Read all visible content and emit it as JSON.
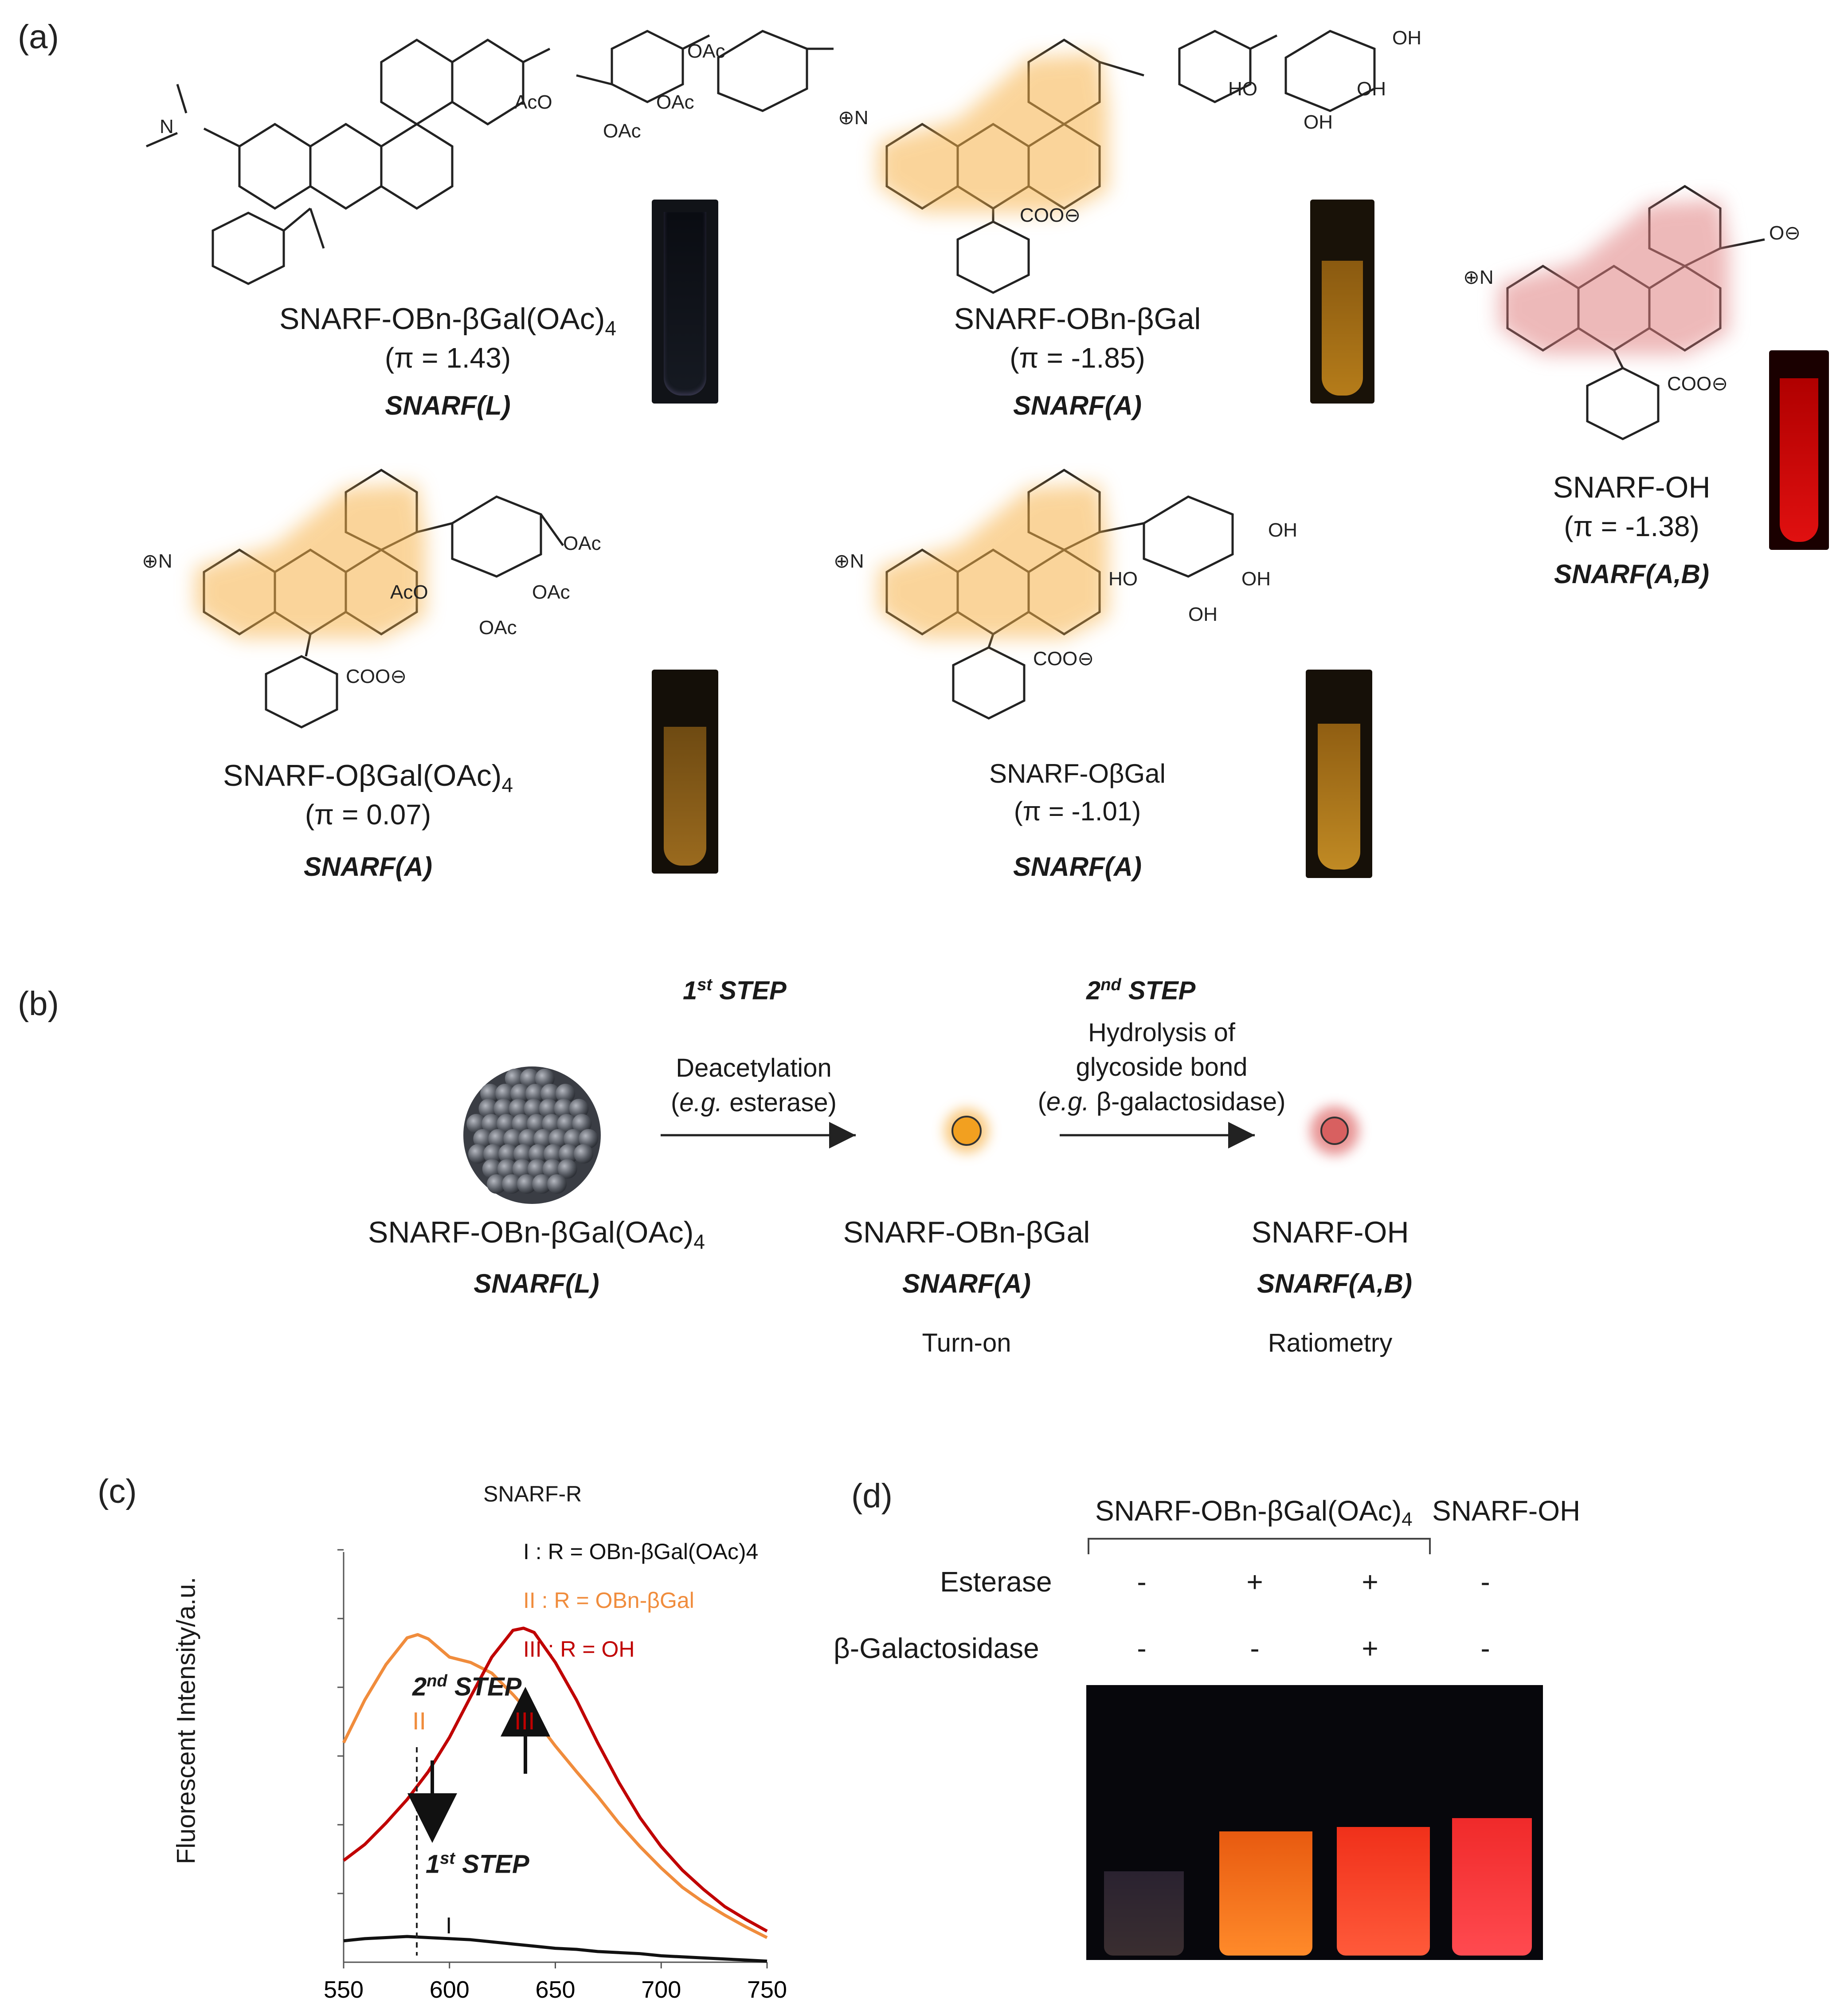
{
  "panel_a": {
    "label": "(a)",
    "compounds": [
      {
        "name": "SNARF-OBn-βGal(OAc)",
        "sub": "4",
        "pi": "(π = 1.43)",
        "cls": "SNARF(L)"
      },
      {
        "name": "SNARF-OBn-βGal",
        "sub": "",
        "pi": "(π = -1.85)",
        "cls": "SNARF(A)"
      },
      {
        "name": "SNARF-OH",
        "sub": "",
        "pi": "(π = -1.38)",
        "cls": "SNARF(A,B)"
      },
      {
        "name": "SNARF-OβGal(OAc)",
        "sub": "4",
        "pi": "(π = 0.07)",
        "cls": "SNARF(A)"
      },
      {
        "name": "SNARF-OβGal",
        "sub": "",
        "pi": "(π = -1.01)",
        "cls": "SNARF(A)"
      }
    ],
    "struct_labels": {
      "oac": "OAc",
      "aco": "AcO",
      "oh": "OH",
      "ho": "HO",
      "coo": "COO",
      "n": "N",
      "o": "O"
    }
  },
  "panel_b": {
    "label": "(b)",
    "step1_num": "1",
    "step1_sup": "st",
    "step1_word": "STEP",
    "step1_l1": "Deacetylation",
    "step1_l2_a": "(",
    "step1_l2_em": "e.g.",
    "step1_l2_b": " esterase)",
    "step2_num": "2",
    "step2_sup": "nd",
    "step2_word": "STEP",
    "step2_l1": "Hydrolysis of",
    "step2_l2": "glycoside bond",
    "step2_l3_a": "(",
    "step2_l3_em": "e.g.",
    "step2_l3_b": " β-galactosidase)",
    "c1_name": "SNARF-OBn-βGal(OAc)",
    "c1_sub": "4",
    "c1_cls": "SNARF(L)",
    "c2_name": "SNARF-OBn-βGal",
    "c2_cls": "SNARF(A)",
    "c2_note": "Turn-on",
    "c3_name": "SNARF-OH",
    "c3_cls": "SNARF(A,B)",
    "c3_note": "Ratiometry"
  },
  "panel_c": {
    "label": "(c)",
    "legend_title": "SNARF-R",
    "ylabel": "Fluorescent Intensity/a.u.",
    "step2_num": "2",
    "step2_sup": "nd",
    "step2_word": "STEP",
    "step1_num": "1",
    "step1_sup": "st",
    "step1_word": "STEP",
    "chart_data": {
      "type": "line",
      "xlim": [
        550,
        750
      ],
      "xticks": [
        550,
        600,
        650,
        700,
        750
      ],
      "ylabel": "Fluorescent Intensity/a.u.",
      "series": [
        {
          "name": "I : R = OBn-βGal(OAc)4",
          "tag": "I",
          "color": "#111111",
          "x": [
            550,
            560,
            570,
            580,
            590,
            600,
            610,
            620,
            630,
            640,
            650,
            660,
            670,
            680,
            690,
            700,
            710,
            720,
            730,
            740,
            750
          ],
          "y": [
            0.2,
            0.22,
            0.23,
            0.24,
            0.23,
            0.22,
            0.21,
            0.19,
            0.17,
            0.15,
            0.13,
            0.12,
            0.1,
            0.09,
            0.08,
            0.06,
            0.05,
            0.04,
            0.03,
            0.02,
            0.01
          ]
        },
        {
          "name": "II : R = OBn-βGal",
          "tag": "II",
          "color": "#f08c3c",
          "x": [
            550,
            560,
            570,
            580,
            585,
            590,
            600,
            610,
            620,
            630,
            640,
            650,
            660,
            670,
            680,
            690,
            700,
            710,
            720,
            730,
            740,
            750
          ],
          "y": [
            2.05,
            2.45,
            2.78,
            3.03,
            3.06,
            3.02,
            2.85,
            2.8,
            2.7,
            2.5,
            2.28,
            2.02,
            1.78,
            1.55,
            1.3,
            1.08,
            0.88,
            0.7,
            0.56,
            0.44,
            0.33,
            0.23
          ]
        },
        {
          "name": "III : R = OH",
          "tag": "III",
          "color": "#c00000",
          "x": [
            550,
            560,
            570,
            580,
            590,
            600,
            610,
            620,
            630,
            635,
            640,
            650,
            660,
            670,
            680,
            690,
            700,
            710,
            720,
            730,
            740,
            750
          ],
          "y": [
            0.95,
            1.1,
            1.3,
            1.52,
            1.78,
            2.1,
            2.48,
            2.85,
            3.1,
            3.12,
            3.08,
            2.8,
            2.45,
            2.05,
            1.68,
            1.35,
            1.08,
            0.86,
            0.68,
            0.52,
            0.4,
            0.29
          ]
        }
      ]
    }
  },
  "panel_d": {
    "label": "(d)",
    "header1_name": "SNARF-OBn-βGal(OAc)",
    "header1_sub": "4",
    "header2": "SNARF-OH",
    "row1": "Esterase",
    "row2": "β-Galactosidase",
    "row1_vals": [
      "-",
      "+",
      "+",
      "-"
    ],
    "row2_vals": [
      "-",
      "-",
      "+",
      "-"
    ]
  },
  "colors": {
    "orange_glow": "#f7b24a",
    "red_glow": "#e08080",
    "orange_fluor": "#ff7a1c",
    "red_fluor": "#ff2a2a"
  }
}
